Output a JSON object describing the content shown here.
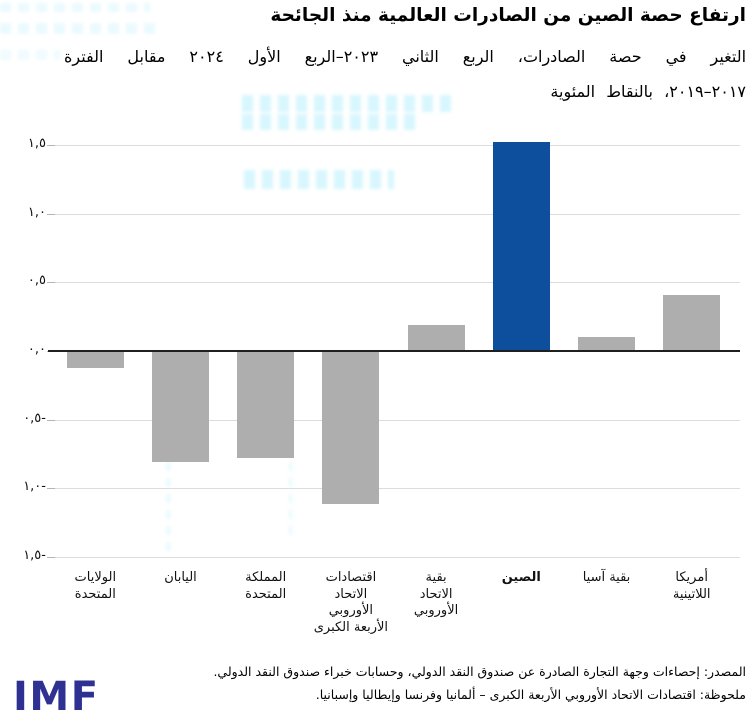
{
  "chart_data": {
    "type": "bar",
    "title": "ارتفاع حصة الصين من الصادرات العالمية منذ الجائحة",
    "subtitle_lines": [
      "التغير في حصة الصادرات، الربع الثاني ٢٠٢٣–الربع الأول ٢٠٢٤ مقابل الفترة",
      "٢٠١٧–٢٠١٩، بالنقاط المئوية"
    ],
    "categories": [
      "الولايات المتحدة",
      "اليابان",
      "المملكة المتحدة",
      "اقتصادات الاتحاد الأوروبي الأربعة الكبرى",
      "بقية الاتحاد الأوروبي",
      "الصين",
      "بقية آسيا",
      "أمريكا اللاتينية"
    ],
    "category_lines": [
      [
        "الولايات",
        "المتحدة"
      ],
      [
        "اليابان"
      ],
      [
        "المملكة",
        "المتحدة"
      ],
      [
        "اقتصادات",
        "الاتحاد",
        "الأوروبي",
        "الأربعة الكبرى"
      ],
      [
        "بقية",
        "الاتحاد",
        "الأوروبي"
      ],
      [
        "الصين"
      ],
      [
        "بقية آسيا"
      ],
      [
        "أمريكا",
        "اللاتينية"
      ]
    ],
    "values": [
      -0.12,
      -0.8,
      -0.77,
      -1.11,
      0.19,
      1.52,
      0.1,
      0.41
    ],
    "highlight_index": 5,
    "bar_color": "#aeaeae",
    "highlight_color": "#0d4e9d",
    "y_ticks": [
      {
        "v": 1.5,
        "label": "١,٥"
      },
      {
        "v": 1.0,
        "label": "١,٠"
      },
      {
        "v": 0.5,
        "label": "٠,٥"
      },
      {
        "v": 0.0,
        "label": "٠,٠"
      },
      {
        "v": -0.5,
        "label": "٠,٥-"
      },
      {
        "v": -1.0,
        "label": "١,٠-"
      },
      {
        "v": -1.5,
        "label": "١,٥-"
      }
    ],
    "ylim": [
      -1.55,
      1.57
    ],
    "grid": true,
    "xlabel": "",
    "ylabel": "",
    "legend": "none"
  },
  "footer": {
    "source": "المصدر: إحصاءات وجهة التجارة الصادرة عن صندوق النقد الدولي، وحسابات خبراء صندوق النقد الدولي.",
    "note": "ملحوظة: اقتصادات الاتحاد الأوروبي الأربعة الكبرى – ألمانيا وفرنسا وإيطاليا وإسبانيا.",
    "logo": "IMF",
    "logo_color": "#2e3192"
  }
}
